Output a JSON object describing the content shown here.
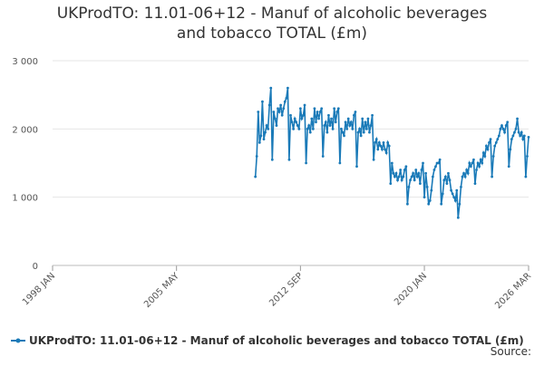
{
  "chart_data": {
    "type": "line",
    "title": "UKProdTO: 11.01-06+12 - Manuf of alcoholic beverages and tobacco TOTAL (£m)",
    "source": "Source:",
    "x": [
      "2010-01",
      "2010-02",
      "2010-03",
      "2010-04",
      "2010-05",
      "2010-06",
      "2010-07",
      "2010-08",
      "2010-09",
      "2010-10",
      "2010-11",
      "2010-12",
      "2011-01",
      "2011-02",
      "2011-03",
      "2011-04",
      "2011-05",
      "2011-06",
      "2011-07",
      "2011-08",
      "2011-09",
      "2011-10",
      "2011-11",
      "2011-12",
      "2012-01",
      "2012-02",
      "2012-03",
      "2012-04",
      "2012-05",
      "2012-06",
      "2012-07",
      "2012-08",
      "2012-09",
      "2012-10",
      "2012-11",
      "2012-12",
      "2013-01",
      "2013-02",
      "2013-03",
      "2013-04",
      "2013-05",
      "2013-06",
      "2013-07",
      "2013-08",
      "2013-09",
      "2013-10",
      "2013-11",
      "2013-12",
      "2014-01",
      "2014-02",
      "2014-03",
      "2014-04",
      "2014-05",
      "2014-06",
      "2014-07",
      "2014-08",
      "2014-09",
      "2014-10",
      "2014-11",
      "2014-12",
      "2015-01",
      "2015-02",
      "2015-03",
      "2015-04",
      "2015-05",
      "2015-06",
      "2015-07",
      "2015-08",
      "2015-09",
      "2015-10",
      "2015-11",
      "2015-12",
      "2016-01",
      "2016-02",
      "2016-03",
      "2016-04",
      "2016-05",
      "2016-06",
      "2016-07",
      "2016-08",
      "2016-09",
      "2016-10",
      "2016-11",
      "2016-12",
      "2017-01",
      "2017-02",
      "2017-03",
      "2017-04",
      "2017-05",
      "2017-06",
      "2017-07",
      "2017-08",
      "2017-09",
      "2017-10",
      "2017-11",
      "2017-12",
      "2018-01",
      "2018-02",
      "2018-03",
      "2018-04",
      "2018-05",
      "2018-06",
      "2018-07",
      "2018-08",
      "2018-09",
      "2018-10",
      "2018-11",
      "2018-12",
      "2019-01",
      "2019-02",
      "2019-03",
      "2019-04",
      "2019-05",
      "2019-06",
      "2019-07",
      "2019-08",
      "2019-09",
      "2019-10",
      "2019-11",
      "2019-12",
      "2020-01",
      "2020-02",
      "2020-03",
      "2020-04",
      "2020-05",
      "2020-06",
      "2020-07",
      "2020-08",
      "2020-09",
      "2020-10",
      "2020-11",
      "2020-12",
      "2021-01",
      "2021-02",
      "2021-03",
      "2021-04",
      "2021-05",
      "2021-06",
      "2021-07",
      "2021-08",
      "2021-09",
      "2021-10",
      "2021-11",
      "2021-12",
      "2022-01",
      "2022-02",
      "2022-03",
      "2022-04",
      "2022-05",
      "2022-06",
      "2022-07",
      "2022-08",
      "2022-09",
      "2022-10",
      "2022-11",
      "2022-12",
      "2023-01",
      "2023-02",
      "2023-03",
      "2023-04",
      "2023-05",
      "2023-06",
      "2023-07",
      "2023-08",
      "2023-09",
      "2023-10",
      "2023-11",
      "2023-12",
      "2024-01",
      "2024-02",
      "2024-03",
      "2024-04",
      "2024-05",
      "2024-06",
      "2024-07",
      "2024-08",
      "2024-09",
      "2024-10",
      "2024-11",
      "2024-12",
      "2025-01",
      "2025-02",
      "2025-03",
      "2025-04",
      "2025-05",
      "2025-06",
      "2025-07",
      "2025-08",
      "2025-09",
      "2025-10",
      "2025-11",
      "2025-12",
      "2026-01",
      "2026-02",
      "2026-03"
    ],
    "series": [
      {
        "name": "UKProdTO: 11.01-06+12 - Manuf of alcoholic beverages and tobacco TOTAL (£m)",
        "color": "#1a7ab8",
        "values": [
          1300,
          1600,
          2250,
          1800,
          1900,
          2400,
          1850,
          1950,
          2050,
          2000,
          2350,
          2600,
          1550,
          2250,
          2150,
          2050,
          2300,
          2250,
          2350,
          2200,
          2300,
          2400,
          2450,
          2600,
          1550,
          2200,
          2100,
          2000,
          2150,
          2100,
          2050,
          2000,
          2300,
          2150,
          2200,
          2350,
          1500,
          2000,
          2050,
          1950,
          2150,
          2000,
          2300,
          2100,
          2250,
          2150,
          2250,
          2300,
          1600,
          2050,
          2100,
          1950,
          2200,
          2050,
          2150,
          2000,
          2300,
          2100,
          2250,
          2300,
          1500,
          2000,
          1950,
          1900,
          2100,
          2000,
          2150,
          2050,
          2100,
          2000,
          2200,
          2250,
          1450,
          1950,
          2000,
          1900,
          2150,
          1950,
          2100,
          2000,
          2150,
          1950,
          2050,
          2200,
          1550,
          1800,
          1850,
          1700,
          1800,
          1750,
          1700,
          1800,
          1700,
          1650,
          1800,
          1750,
          1200,
          1500,
          1350,
          1300,
          1350,
          1250,
          1300,
          1400,
          1250,
          1300,
          1400,
          1450,
          900,
          1150,
          1250,
          1300,
          1350,
          1250,
          1400,
          1300,
          1350,
          1200,
          1400,
          1500,
          1000,
          1350,
          1150,
          900,
          950,
          1100,
          1300,
          1400,
          1450,
          1500,
          1500,
          1550,
          900,
          1050,
          1250,
          1300,
          1200,
          1350,
          1250,
          1100,
          1050,
          1000,
          950,
          1100,
          700,
          900,
          1150,
          1300,
          1350,
          1300,
          1400,
          1350,
          1500,
          1450,
          1500,
          1550,
          1200,
          1400,
          1500,
          1450,
          1550,
          1500,
          1650,
          1600,
          1750,
          1700,
          1800,
          1850,
          1300,
          1600,
          1750,
          1800,
          1850,
          1900,
          2000,
          2050,
          2000,
          1950,
          2050,
          2100,
          1450,
          1700,
          1850,
          1900,
          1950,
          2000,
          2150,
          1950,
          1900,
          1950,
          1850,
          1900,
          1300,
          1600,
          1880
        ]
      }
    ],
    "xlim": [
      "1998-01",
      "2026-03"
    ],
    "xticks": [
      {
        "value": "1998-01",
        "label": "1998 JAN"
      },
      {
        "value": "2005-05",
        "label": "2005 MAY"
      },
      {
        "value": "2012-09",
        "label": "2012 SEP"
      },
      {
        "value": "2020-01",
        "label": "2020 JAN"
      },
      {
        "value": "2026-03",
        "label": "2026 MAR"
      }
    ],
    "ylim": [
      0,
      3000
    ],
    "yticks": [
      0,
      {
        "value": 1000,
        "label": "1 000"
      },
      {
        "value": 2000,
        "label": "2 000"
      },
      {
        "value": 3000,
        "label": "3 000"
      }
    ],
    "grid": true
  }
}
